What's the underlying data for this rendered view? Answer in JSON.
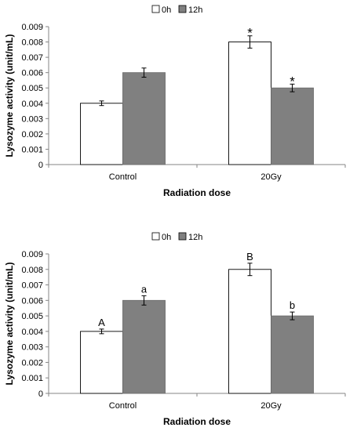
{
  "chart_data": [
    {
      "type": "bar",
      "categories": [
        "Control",
        "20Gy"
      ],
      "series": [
        {
          "name": "0h",
          "values": [
            0.004,
            0.008
          ],
          "errors": [
            0.00015,
            0.0004
          ],
          "color": "#ffffff"
        },
        {
          "name": "12h",
          "values": [
            0.006,
            0.005
          ],
          "errors": [
            0.0003,
            0.00025
          ],
          "color": "#808080"
        }
      ],
      "annotations": [
        [
          "",
          "*"
        ],
        [
          "",
          "*"
        ]
      ],
      "xlabel": "Radiation dose",
      "ylabel": "Lysozyme activity (unit/mL)",
      "ylim": [
        0,
        0.009
      ],
      "yticks": [
        "0",
        "0.001",
        "0.002",
        "0.003",
        "0.004",
        "0.005",
        "0.006",
        "0.007",
        "0.008",
        "0.009"
      ],
      "legend_position": "top",
      "grid": false
    },
    {
      "type": "bar",
      "categories": [
        "Control",
        "20Gy"
      ],
      "series": [
        {
          "name": "0h",
          "values": [
            0.004,
            0.008
          ],
          "errors": [
            0.00015,
            0.0004
          ],
          "color": "#ffffff"
        },
        {
          "name": "12h",
          "values": [
            0.006,
            0.005
          ],
          "errors": [
            0.0003,
            0.00025
          ],
          "color": "#808080"
        }
      ],
      "annotations": [
        [
          "A",
          "B"
        ],
        [
          "a",
          "b"
        ]
      ],
      "xlabel": "Radiation dose",
      "ylabel": "Lysozyme activity (unit/mL)",
      "ylim": [
        0,
        0.009
      ],
      "yticks": [
        "0",
        "0.001",
        "0.002",
        "0.003",
        "0.004",
        "0.005",
        "0.006",
        "0.007",
        "0.008",
        "0.009"
      ],
      "legend_position": "top",
      "grid": false
    }
  ]
}
